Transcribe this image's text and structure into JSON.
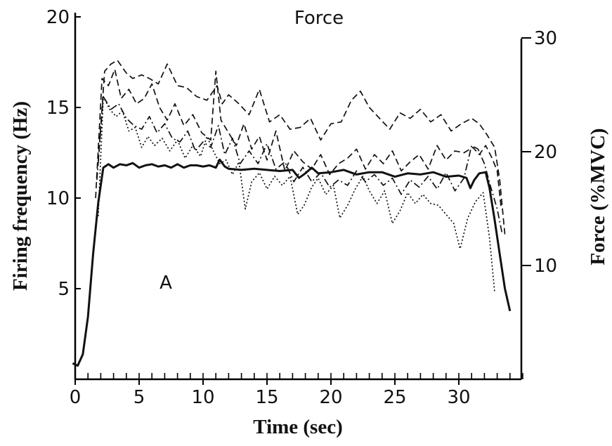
{
  "chart_data": {
    "type": "line",
    "xlabel": "Time (sec)",
    "ylabel": "Firing frequency (Hz)",
    "y2label": "Force (%MVC)",
    "xlim": [
      0,
      35
    ],
    "ylim": [
      0,
      20
    ],
    "y2lim": [
      0,
      30
    ],
    "x_ticks": [
      0,
      5,
      10,
      15,
      20,
      25,
      30
    ],
    "y_ticks": [
      5,
      10,
      15,
      20
    ],
    "y2_ticks": [
      10,
      20,
      30
    ],
    "grid": false,
    "annotations": [
      "Force",
      "A"
    ],
    "series": [
      {
        "name": "Force",
        "axis": "right",
        "style": "solid",
        "points": [
          [
            -0.2,
            1.4
          ],
          [
            0.2,
            1.2
          ],
          [
            0.6,
            2.2
          ],
          [
            1.0,
            5.5
          ],
          [
            1.4,
            11
          ],
          [
            1.8,
            15.5
          ],
          [
            2.2,
            18.6
          ],
          [
            2.6,
            18.9
          ],
          [
            3,
            18.6
          ],
          [
            3.5,
            18.9
          ],
          [
            4,
            18.8
          ],
          [
            4.5,
            19.0
          ],
          [
            5,
            18.6
          ],
          [
            5.5,
            18.8
          ],
          [
            6,
            18.9
          ],
          [
            6.5,
            18.7
          ],
          [
            7,
            18.8
          ],
          [
            7.5,
            18.6
          ],
          [
            8,
            18.9
          ],
          [
            8.5,
            18.6
          ],
          [
            9,
            18.8
          ],
          [
            9.5,
            18.8
          ],
          [
            10,
            18.7
          ],
          [
            10.5,
            18.8
          ],
          [
            11,
            18.6
          ],
          [
            11.3,
            19.3
          ],
          [
            11.7,
            18.7
          ],
          [
            12,
            18.5
          ],
          [
            13,
            18.4
          ],
          [
            14,
            18.5
          ],
          [
            15,
            18.4
          ],
          [
            16,
            18.3
          ],
          [
            17,
            18.4
          ],
          [
            17.5,
            17.7
          ],
          [
            18,
            18.1
          ],
          [
            18.5,
            18.6
          ],
          [
            19,
            18.1
          ],
          [
            20,
            18.2
          ],
          [
            21,
            18.4
          ],
          [
            22,
            18.0
          ],
          [
            23,
            18.2
          ],
          [
            24,
            18.2
          ],
          [
            25,
            17.8
          ],
          [
            26,
            18.1
          ],
          [
            27,
            18.0
          ],
          [
            28,
            18.2
          ],
          [
            29,
            17.8
          ],
          [
            30,
            17.9
          ],
          [
            30.6,
            17.7
          ],
          [
            30.9,
            16.8
          ],
          [
            31.2,
            17.5
          ],
          [
            31.6,
            18.1
          ],
          [
            32.1,
            18.2
          ],
          [
            32.4,
            16.8
          ],
          [
            32.8,
            14.0
          ],
          [
            33.2,
            11.0
          ],
          [
            33.6,
            8.0
          ],
          [
            34.0,
            6.0
          ]
        ]
      },
      {
        "name": "",
        "axis": "left",
        "style": "dash",
        "points": [
          [
            1.8,
            12
          ],
          [
            2.3,
            17.0
          ],
          [
            2.8,
            17.4
          ],
          [
            3.3,
            17.6
          ],
          [
            4,
            16.9
          ],
          [
            4.5,
            16.6
          ],
          [
            5.2,
            16.8
          ],
          [
            5.8,
            16.6
          ],
          [
            6.5,
            16.3
          ],
          [
            7.2,
            17.4
          ],
          [
            8,
            16.2
          ],
          [
            8.7,
            16.1
          ],
          [
            9.5,
            15.6
          ],
          [
            10.3,
            15.4
          ],
          [
            11.1,
            16.2
          ],
          [
            11.5,
            15.2
          ],
          [
            12,
            15.7
          ],
          [
            12.8,
            15.2
          ],
          [
            13.6,
            14.6
          ],
          [
            14.4,
            16.0
          ],
          [
            15.2,
            14.2
          ],
          [
            16,
            14.6
          ],
          [
            16.8,
            13.8
          ],
          [
            17.6,
            13.9
          ],
          [
            18.4,
            14.4
          ],
          [
            19.2,
            13.2
          ],
          [
            20,
            14.1
          ],
          [
            20.8,
            14.2
          ],
          [
            21.6,
            15.4
          ],
          [
            22.3,
            15.9
          ],
          [
            23,
            15.0
          ],
          [
            23.8,
            14.4
          ],
          [
            24.6,
            13.8
          ],
          [
            25.4,
            14.7
          ],
          [
            26.2,
            14.4
          ],
          [
            27,
            14.9
          ],
          [
            27.8,
            14.2
          ],
          [
            28.6,
            14.6
          ],
          [
            29.4,
            13.7
          ],
          [
            30.2,
            14.1
          ],
          [
            31,
            14.4
          ],
          [
            31.6,
            14.1
          ],
          [
            32.2,
            13.5
          ],
          [
            32.8,
            12.8
          ],
          [
            33.2,
            11.0
          ],
          [
            33.6,
            8.0
          ]
        ]
      },
      {
        "name": "",
        "axis": "left",
        "style": "dash",
        "points": [
          [
            1.6,
            10
          ],
          [
            2.1,
            16.6
          ],
          [
            2.6,
            16.2
          ],
          [
            3.1,
            17.1
          ],
          [
            3.6,
            15.5
          ],
          [
            4.2,
            16.0
          ],
          [
            4.8,
            15.2
          ],
          [
            5.4,
            15.5
          ],
          [
            6,
            16.3
          ],
          [
            6.6,
            15.0
          ],
          [
            7.2,
            14.3
          ],
          [
            7.8,
            15.2
          ],
          [
            8.5,
            14.0
          ],
          [
            9.2,
            14.6
          ],
          [
            9.9,
            13.6
          ],
          [
            10.6,
            13.2
          ],
          [
            11.0,
            17.0
          ],
          [
            11.4,
            14.3
          ],
          [
            12,
            13.6
          ],
          [
            12.6,
            12.9
          ],
          [
            13.2,
            14.1
          ],
          [
            13.8,
            12.7
          ],
          [
            14.4,
            13.4
          ],
          [
            15.0,
            12.1
          ],
          [
            15.7,
            13.7
          ],
          [
            16.4,
            11.5
          ],
          [
            17.1,
            12.6
          ],
          [
            17.8,
            12.0
          ],
          [
            18.5,
            11.6
          ],
          [
            19.2,
            12.4
          ],
          [
            19.9,
            11.3
          ],
          [
            20.6,
            11.9
          ],
          [
            21.3,
            12.2
          ],
          [
            22.0,
            12.7
          ],
          [
            22.7,
            11.6
          ],
          [
            23.4,
            12.4
          ],
          [
            24.1,
            11.9
          ],
          [
            24.8,
            12.6
          ],
          [
            25.5,
            11.5
          ],
          [
            26.2,
            12.0
          ],
          [
            26.9,
            12.4
          ],
          [
            27.6,
            11.6
          ],
          [
            28.3,
            12.9
          ],
          [
            29.0,
            12.1
          ],
          [
            29.7,
            12.6
          ],
          [
            30.4,
            12.5
          ],
          [
            31.1,
            12.8
          ],
          [
            31.6,
            12.4
          ],
          [
            32.1,
            12.9
          ],
          [
            32.6,
            12.2
          ],
          [
            33.0,
            11.5
          ],
          [
            33.3,
            9.5
          ]
        ]
      },
      {
        "name": "",
        "axis": "left",
        "style": "dashdot",
        "points": [
          [
            1.7,
            11
          ],
          [
            2.2,
            15.6
          ],
          [
            2.8,
            14.9
          ],
          [
            3.4,
            15.2
          ],
          [
            4,
            14.4
          ],
          [
            4.6,
            14.0
          ],
          [
            5.2,
            13.8
          ],
          [
            5.8,
            14.5
          ],
          [
            6.4,
            13.6
          ],
          [
            7.0,
            14.1
          ],
          [
            7.6,
            13.3
          ],
          [
            8.2,
            13.1
          ],
          [
            8.8,
            13.7
          ],
          [
            9.4,
            12.6
          ],
          [
            10.0,
            13.1
          ],
          [
            10.6,
            12.8
          ],
          [
            11.2,
            14.0
          ],
          [
            11.7,
            12.4
          ],
          [
            12.3,
            13.3
          ],
          [
            12.9,
            11.9
          ],
          [
            13.6,
            12.6
          ],
          [
            14.3,
            11.9
          ],
          [
            15.0,
            13.0
          ],
          [
            15.7,
            11.6
          ],
          [
            16.4,
            12.0
          ],
          [
            17.1,
            10.9
          ],
          [
            17.8,
            11.7
          ],
          [
            18.5,
            10.9
          ],
          [
            19.2,
            11.4
          ],
          [
            19.9,
            10.6
          ],
          [
            20.6,
            11.0
          ],
          [
            21.3,
            10.7
          ],
          [
            22.0,
            11.5
          ],
          [
            22.7,
            10.9
          ],
          [
            23.4,
            11.3
          ],
          [
            24.1,
            10.7
          ],
          [
            24.8,
            11.1
          ],
          [
            25.5,
            10.2
          ],
          [
            26.2,
            11.0
          ],
          [
            26.9,
            10.6
          ],
          [
            27.6,
            11.2
          ],
          [
            28.3,
            10.5
          ],
          [
            29.0,
            11.4
          ],
          [
            29.7,
            10.4
          ],
          [
            30.4,
            11.1
          ],
          [
            31.0,
            12.9
          ],
          [
            31.5,
            12.7
          ],
          [
            32.0,
            11.9
          ],
          [
            32.5,
            10.6
          ],
          [
            33.0,
            9.4
          ],
          [
            33.4,
            8.0
          ]
        ]
      },
      {
        "name": "",
        "axis": "left",
        "style": "dot",
        "points": [
          [
            1.8,
            9
          ],
          [
            2.2,
            15.6
          ],
          [
            2.7,
            14.9
          ],
          [
            3.2,
            14.5
          ],
          [
            3.7,
            14.8
          ],
          [
            4.2,
            13.7
          ],
          [
            4.7,
            13.9
          ],
          [
            5.2,
            12.8
          ],
          [
            5.7,
            13.4
          ],
          [
            6.2,
            12.9
          ],
          [
            6.8,
            13.3
          ],
          [
            7.4,
            12.6
          ],
          [
            8.0,
            13.2
          ],
          [
            8.6,
            12.2
          ],
          [
            9.2,
            12.9
          ],
          [
            9.8,
            12.3
          ],
          [
            10.3,
            13.4
          ],
          [
            10.8,
            12.6
          ],
          [
            11.3,
            11.9
          ],
          [
            11.8,
            12.1
          ],
          [
            12.3,
            11.3
          ],
          [
            12.8,
            12.0
          ],
          [
            13.3,
            9.4
          ],
          [
            13.8,
            10.9
          ],
          [
            14.4,
            11.4
          ],
          [
            15.0,
            10.5
          ],
          [
            15.6,
            11.2
          ],
          [
            16.2,
            10.7
          ],
          [
            16.8,
            11.2
          ],
          [
            17.4,
            9.1
          ],
          [
            17.9,
            9.6
          ],
          [
            18.5,
            10.6
          ],
          [
            19.0,
            11.1
          ],
          [
            19.6,
            10.2
          ],
          [
            20.2,
            10.7
          ],
          [
            20.7,
            8.9
          ],
          [
            21.3,
            9.6
          ],
          [
            21.9,
            10.5
          ],
          [
            22.5,
            11.2
          ],
          [
            23.0,
            10.4
          ],
          [
            23.6,
            9.7
          ],
          [
            24.2,
            10.4
          ],
          [
            24.8,
            8.6
          ],
          [
            25.4,
            9.3
          ],
          [
            26.0,
            10.3
          ],
          [
            26.6,
            9.7
          ],
          [
            27.2,
            10.2
          ],
          [
            27.8,
            9.7
          ],
          [
            28.4,
            9.6
          ],
          [
            29.0,
            9.1
          ],
          [
            29.6,
            8.6
          ],
          [
            30.1,
            7.2
          ],
          [
            30.7,
            8.9
          ],
          [
            31.3,
            9.8
          ],
          [
            31.9,
            10.3
          ],
          [
            32.4,
            7.8
          ],
          [
            32.8,
            4.8
          ]
        ]
      }
    ]
  }
}
